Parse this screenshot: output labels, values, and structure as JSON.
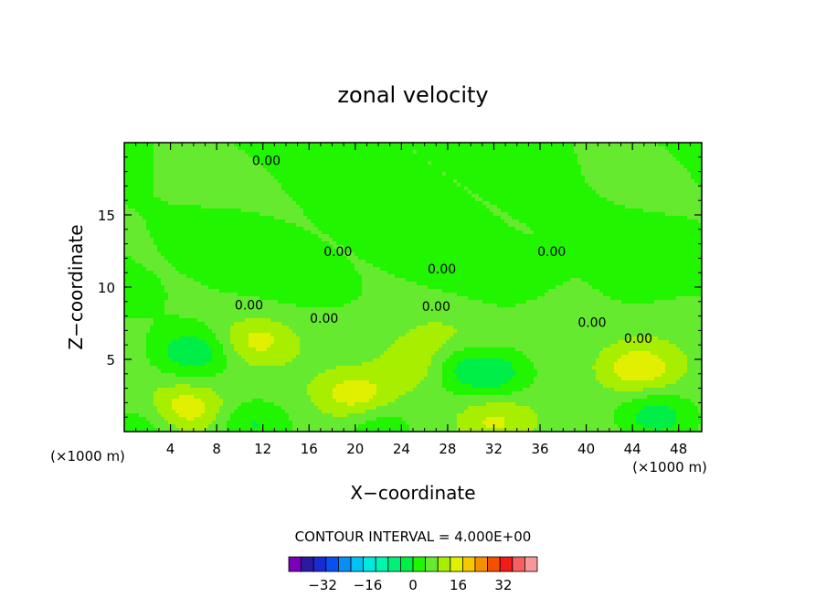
{
  "chart_data": {
    "type": "heatmap",
    "title": "zonal velocity",
    "xlabel": "X−coordinate",
    "ylabel": "Z−coordinate",
    "x_unit": "(×1000 m)",
    "xlim": [
      0,
      50
    ],
    "ylim": [
      0,
      20
    ],
    "xticks": [
      4,
      8,
      12,
      16,
      20,
      24,
      28,
      32,
      36,
      40,
      44,
      48
    ],
    "yticks": [
      5,
      10,
      15
    ],
    "contour_interval_label": "CONTOUR INTERVAL = 4.000E+00",
    "contour_labels": [
      {
        "text": "0.00",
        "x": 12.3,
        "y": 18.7
      },
      {
        "text": "0.00",
        "x": 18.5,
        "y": 12.4
      },
      {
        "text": "0.00",
        "x": 27.5,
        "y": 11.2
      },
      {
        "text": "0.00",
        "x": 37.0,
        "y": 12.4
      },
      {
        "text": "0.00",
        "x": 10.8,
        "y": 8.7
      },
      {
        "text": "0.00",
        "x": 17.3,
        "y": 7.8
      },
      {
        "text": "0.00",
        "x": 27.0,
        "y": 8.6
      },
      {
        "text": "0.00",
        "x": 40.5,
        "y": 7.5
      },
      {
        "text": "0.00",
        "x": 44.5,
        "y": 6.4
      }
    ],
    "colorbar": {
      "min": -44,
      "max": 44,
      "interval": 4,
      "tick_values": [
        -32,
        -16,
        0,
        16,
        32
      ],
      "tick_labels": [
        "−32",
        "−16",
        "0",
        "16",
        "32"
      ],
      "colors": [
        "#7a00b8",
        "#2a1aa0",
        "#1a2ad2",
        "#0a50f0",
        "#0a8ef5",
        "#00c2f5",
        "#00e8e0",
        "#00f5b0",
        "#00f078",
        "#00ee48",
        "#22f500",
        "#66ea30",
        "#a8ee00",
        "#e0f000",
        "#f5c800",
        "#f59000",
        "#f55000",
        "#f51a1a",
        "#f56060",
        "#f59898"
      ]
    },
    "field_features": [
      {
        "x": 6,
        "y": 5.5,
        "amp": -9
      },
      {
        "x": 28,
        "y": 4.5,
        "amp": -7
      },
      {
        "x": 32,
        "y": 4,
        "amp": -9
      },
      {
        "x": 46,
        "y": 1,
        "amp": -8
      },
      {
        "x": 11,
        "y": 0.5,
        "amp": -6
      },
      {
        "x": 2,
        "y": 0.5,
        "amp": -5
      },
      {
        "x": 22,
        "y": 0.3,
        "amp": -5
      },
      {
        "x": 44,
        "y": 10.3,
        "amp": -3
      },
      {
        "x": 35,
        "y": 10.2,
        "amp": -2
      },
      {
        "x": 5.5,
        "y": 1.6,
        "amp": 9
      },
      {
        "x": 11.5,
        "y": 6.3,
        "amp": 7
      },
      {
        "x": 25.5,
        "y": 4.5,
        "amp": 8
      },
      {
        "x": 20,
        "y": 2.6,
        "amp": 8
      },
      {
        "x": 44.5,
        "y": 4.4,
        "amp": 10
      },
      {
        "x": 32,
        "y": 0.7,
        "amp": 7
      },
      {
        "x": 38,
        "y": 8.5,
        "amp": 3
      },
      {
        "x": 27,
        "y": 6.5,
        "amp": 3
      }
    ]
  }
}
